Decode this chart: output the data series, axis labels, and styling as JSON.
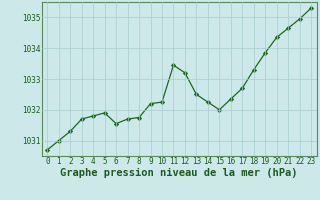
{
  "x": [
    0,
    1,
    2,
    3,
    4,
    5,
    6,
    7,
    8,
    9,
    10,
    11,
    12,
    13,
    14,
    15,
    16,
    17,
    18,
    19,
    20,
    21,
    22,
    23
  ],
  "y": [
    1030.7,
    1031.0,
    1031.3,
    1031.7,
    1031.8,
    1031.9,
    1031.55,
    1031.7,
    1031.75,
    1032.2,
    1032.25,
    1033.45,
    1033.2,
    1032.5,
    1032.25,
    1032.0,
    1032.35,
    1032.7,
    1033.3,
    1033.85,
    1034.35,
    1034.65,
    1034.95,
    1035.3
  ],
  "line_color": "#1a6b1a",
  "marker_color": "#1a6b1a",
  "bg_color": "#cce8e8",
  "grid_color": "#a8cccc",
  "xlabel": "Graphe pression niveau de la mer (hPa)",
  "xlabel_color": "#1a5c1a",
  "tick_color": "#1a5c1a",
  "spine_color": "#5a8a5a",
  "ylim": [
    1030.5,
    1035.5
  ],
  "yticks": [
    1031,
    1032,
    1033,
    1034,
    1035
  ],
  "xticks": [
    0,
    1,
    2,
    3,
    4,
    5,
    6,
    7,
    8,
    9,
    10,
    11,
    12,
    13,
    14,
    15,
    16,
    17,
    18,
    19,
    20,
    21,
    22,
    23
  ],
  "tick_fontsize": 5.5,
  "xlabel_fontsize": 7.5
}
